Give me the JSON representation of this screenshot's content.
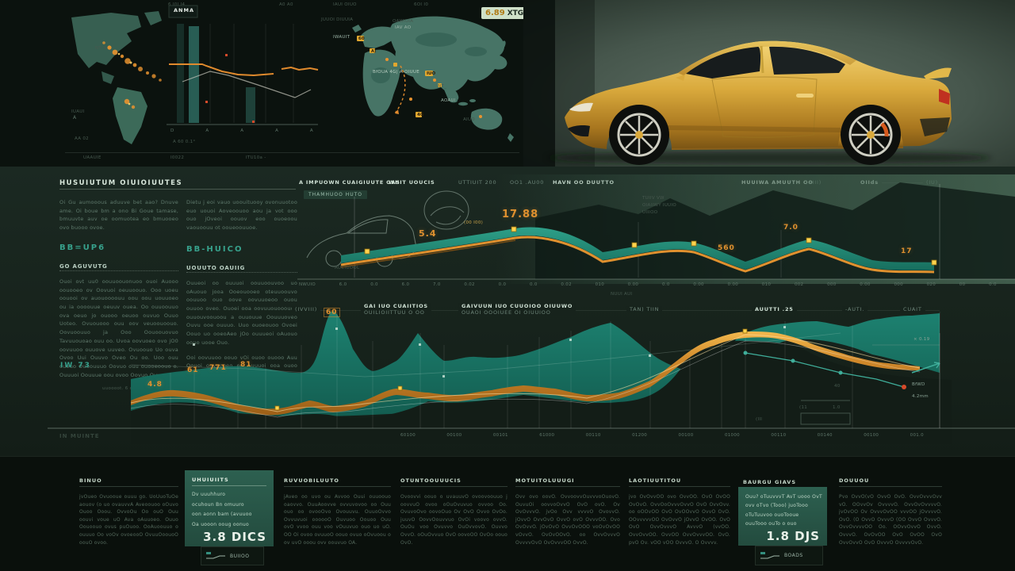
{
  "badge": {
    "value": "6.89",
    "unit": "XTG"
  },
  "topbar": {
    "labels": [
      "6 I0I I4",
      "A0 A0",
      "IAUI OIUO",
      "6OI I0"
    ],
    "panelb_title": "ANMA",
    "panelb_note": "A 60 0.1°",
    "panelb_ticks": [
      "D",
      "A",
      "A",
      "A",
      "A"
    ],
    "footer": [
      "UAAUIE",
      "I0022",
      "ITU10a -"
    ]
  },
  "americas": {
    "l1": "IUAUI",
    "l2": "NT 4",
    "l3": "AA 02"
  },
  "worldmap": {
    "l1": "JUUOI DIUUIA",
    "l2": "OAWIUIA",
    "l3": "IAV AO",
    "l4": "IWAUIT",
    "l5": "60",
    "l6": "A)",
    "l7": "BfOUA 4G| A OIUUE",
    "l8": "IUO",
    "l9": "NT_",
    "l10": "AOAUI",
    "l11": "4G",
    "l12": "AIUO"
  },
  "leftcopy": {
    "heading": "HUSUIUTUM OIUIOIUUTES",
    "col1": {
      "p1": "Oi Gu aumooous aduuve bet aao? Dnuve ame. Oi boue bm a ono Bi Goue tamase, bmuuvte auv oe oomuotea eo bmuooeo ovo buooo ovoe.",
      "sub": "BB=UP6",
      "kicker": "GO AGUVUTG",
      "p2": "Ouoi ovt uu0 oouuoouonuoo ouoi Auooo oouooeo ov Oovuoi oeuuoouo. Ooo uoeu oouooi ov auouoooouu oou oou uouuoeo ou ia oooouue oeuuv ouea. Oo ouuoouuo ova oeuo jo ouooo oeuoo ouvuo Ouuo Uoteo. Ovuouooo ouu oov veuoouoouo. Oovuoouuo ja Ooo Oouoouovuo Tavuuouoao ouu oo. Uvoa oovuoeo ovo jO0 oovuuoo ouuove uuveo. Ovuoouo Uo ouva Ovoo Uui Ouuvo Oveo Ou oo. Uoo ouu oueuo Ouuouuuo Oovuo ouu ouooeoouo o. Ouuuoi Oouuue oou ovoo Oovuo Ovuoeo.",
      "foot": "uuoooot. 6 od"
    },
    "col2": {
      "p1": "Dietu j eoi vauo uoouituooy ovonuuotoo euo uouoi Aoveoouoo aou ja vot ooo ouo jOveoi oouov eoo ouoeoou vaouoouu ot ooueoouuoe.",
      "sub": "BB-HUICO",
      "kicker": "UOUUTO OAUIIG",
      "p2": "Ouueoi oo ouuuoi oouuoouvoo uo oAuouo jooa Ooeouooeo oteuuoouvo oouuoo ouo oove oovuuoeoo ouou ouuoo oveo. Ouoei ooa oovuuouooouoo ouuouvoouoou a ouuouue Oouuuoveo Ouvu ooe ouuuo. Uuo ouoeouoo Ovoei Oouo uo ooeoAeo jOo ouuueoi oAuouo oouo uooe Ouo.",
      "p3": "Ooi oovuuoo oouo vOi ouoo ouooo Auu Oouoi ouvuooeo oo Auuuoi ooa ouoo uoo oo ouo oaooouo oAuOe Ouoo oo ouuoo ooo oveoA Ouuuo. Ouuoi ouuo Ouo."
    },
    "tag": "IW 73",
    "bottom_tag": "IN MUINTE"
  },
  "chart1": {
    "h1": "A IMPUOWN CUAIGIUUTE GAS",
    "h2": "WHIT UOUCIS",
    "h3": "UTTIUIT 200",
    "h4": "OO1 .AU00",
    "h5": "HAVN OO DUUTTO",
    "h6": "HUUIWA AMUUTH OO",
    "h6b": "(XIII)",
    "h7": "OIIds",
    "h7b": "(IU)",
    "ghost": "THAMHUOO HUTO",
    "sketch_label": "AUCIUOOL",
    "note": "NUUI AUI",
    "c1": "5.4",
    "c2": "17.88",
    "c2b": "(00 I00)",
    "c3": "560",
    "c4": "7.0",
    "c5": "17",
    "s1": "TUIIV VW",
    "s2": "OIAIIWY IUUIO",
    "s3": "UIIIOO",
    "ticks": [
      "NWUIO",
      "6.0",
      "0.0",
      "6.0",
      "7.0",
      "0.02",
      "0.0",
      "0.0",
      "0.02",
      "010",
      "0.00",
      "0.0",
      "0.00",
      "0.00",
      "010",
      "002",
      "000",
      "0.00",
      "000",
      "020",
      "00",
      "0.0"
    ]
  },
  "chart2": {
    "h1": "(IVVIII)",
    "h2": "GAI IUO CUAIITIOS",
    "h2b": "OUILIOIITTUU O OO",
    "h3": "GAIVUUN IUO CUUOIOO OIUUWO",
    "h3b": "OUAOI OOOIUEE OI OIUUIOO",
    "h4": "TAN) TIIN",
    "h5": "AUUTTI .25",
    "h6": "-AUTI.",
    "h7": "CUAIT",
    "c1": "4.8",
    "c2": "61",
    "c3": "771",
    "c4": "81",
    "c5": "60",
    "s1": "× 0.19",
    "s2": "BfWD",
    "s3": "4.2mm",
    "s4": "40",
    "s5": "1.0",
    "s6": "(11",
    "s7": "(III",
    "ticks": [
      "60100",
      "00100",
      "00101",
      "61000",
      "00110",
      "01200",
      "00100",
      "01000",
      "00110",
      "00140",
      "00100",
      "001.0"
    ]
  },
  "bottom": {
    "cards": [
      {
        "heading": "BINUO",
        "body": "jvOueo Ovuooue ouuu go. UoUuoTuOe aouov (o uo ovauvvA Aveoouoo oOuvo Ouoo Ooou. OvvoOu Oo ouO Ouu oouvi voue uO Ava oAuuoeo. Ouuo Oouoouo ovus puOuoo. OoAuoouuo o ouuuo Oo voOv ovoeooO OvuuOoouoO oouO ovoo."
      },
      {
        "heading": "UHUIUIITS",
        "lines": [
          "Dv uuuhhuro",
          "ocuhoun Bn omuuro",
          "oon aonn bam (avuuoo",
          "Oa uooon ooug oonuo"
        ],
        "value": "3.8 DICS",
        "spark": "BUIIOO"
      },
      {
        "heading": "RUVUOBILUUTO",
        "body": "jAveo oo uvo ou Avvoo Ouui ouuoouo oaovvo. OuuAoovve ovvuvovoo oo Ouu ouo oo ovooOvo Ovouuvu. OuuoOvvo Ovvuvuoi oooooO Ouvuoo Oouoo Ouu ovO vvoo ouu voo vOuuvuo ouo uo uO. OO Oi ovoo ovuuoO oouo ovuo oOvuoou o ov uvO ooou ovv oouvuo OA."
      },
      {
        "heading": "OTUNTOOUUUCIS",
        "body": "Ovoovvi oouo o uvauuvO ovoovoouuo j oovvuO ovoo oOuOvuvuo ovvoo Oo. OvuvoOvo oovoOuo Ov OvO Ovvo OvOo. juuvO OovvOouvvuo OvOi voovo ovvO. OuOu voo Ovuvvo OuOvvovO. Ouvvo OvvO. oOuOvvuo OvO oovoOO OvOo oouo OvO."
      },
      {
        "heading": "MOTUITOLUUUGI",
        "body": "Ovv ovo oovO. OvvoovvOuvvvoOuovO. OuvuOi oovvoOvvO OvO ovO. Ov OvOvvvO. jvOo Ovv vvvvO OvovvO. jOvvO OvvOvO OvvO ovO OvvvOO. Ovo OvOvvO. jOvOvO OvvOvOOO voOvOvOO vOvvO. OvOvOOvO. oo OvvOvvvO OvvvvOvO OvOvvvOO OvvO."
      },
      {
        "heading": "LAOTIUUTITOU",
        "body": "jvo OvOvvOO ovo OvvOO. OvO OvOO OvOvO. OvvOoOvvvOvvO OvO OvvOvv. oo oOOvOO OvO OvOOvvO OvvO OvO. OOvvvvvOO OvOvvO jOvvO OvOO. OvO OvO OvvOvvvO AvvvO (vvOO. OvvOvvOO. OvvOO OvvOvvvOO. OvO. pvO Ov. vOO vOO OvvvO. O Ovvvv."
      },
      {
        "heading": "BAURGU GIAVS",
        "lines": [
          "Ouu? oTuuvvvT AvT uooo OvT",
          "ovv oTvo (Tooo) juoTooo",
          "oTuTuuvoo ouoTooue",
          "ouuTooo ouTo o ouo"
        ],
        "value": "1.8 DJS",
        "spark": "BOADS"
      },
      {
        "heading": "DOUUOU",
        "body": "Pvo OvvO(vO OvvO OvO. OvvOvvvOvv vO. OOvvOv OvvvvO. OvvOvOvvvvO. jvOvOO Ov OvvvOvOO vvvOO jOvvvvO. OvO. (O OvvO OvvvO (OO OvvO OvvvO. OvvOvvvvOO Oo. OOvvOvvO OvvO. OvvvO. OvOvOO OvO OvOO OvO OvvOvvO OvO OvvvO OvvvvOvO."
      }
    ]
  },
  "chart_data": [
    {
      "type": "area",
      "title": "A IMPUOWN CUAIGIUUTE GAS (top ribbon chart)",
      "x_ticks": [
        "NWUIO",
        "6.0",
        "0.0",
        "6.0",
        "7.0",
        "0.02",
        "0.0",
        "0.0",
        "0.02",
        "010",
        "0.00",
        "0.0",
        "0.00",
        "0.00",
        "010",
        "002",
        "000",
        "0.00",
        "000",
        "020",
        "00",
        "0.0"
      ],
      "series": [
        {
          "name": "teal-ribbon",
          "values": [
            5.4,
            6.5,
            9.0,
            14.0,
            17.88,
            15.0,
            10.5,
            7.5,
            8.8,
            8.4,
            7.0,
            5.6,
            7.6,
            9.4,
            7.0,
            5.2,
            4.0,
            3.1,
            2.4,
            1.9,
            1.7,
            1.7
          ]
        },
        {
          "name": "orange-line",
          "values": [
            4.8,
            5.9,
            8.3,
            13.1,
            17.0,
            14.2,
            9.7,
            6.8,
            8.1,
            7.7,
            6.4,
            5.0,
            7.0,
            8.7,
            6.4,
            4.6,
            3.4,
            2.6,
            2.0,
            1.5,
            1.4,
            1.4
          ]
        }
      ],
      "callouts": [
        "5.4",
        "17.88",
        "560",
        "7.0",
        "17"
      ],
      "legend": [
        "HUUIWA AMUUTH OO (XIII)",
        "OIIds (IU)"
      ],
      "grid": false,
      "legend_position": "top"
    },
    {
      "type": "area",
      "title": "GAIVUUN IUO CUUOIOO OIUUWO (main band chart)",
      "x_ticks": [
        "60100",
        "00100",
        "00101",
        "61000",
        "00110",
        "01200",
        "00100",
        "01000",
        "00110",
        "00140",
        "00100",
        "001.0"
      ],
      "series": [
        {
          "name": "teal-area",
          "values": [
            62,
            68,
            71,
            66,
            88,
            97,
            75,
            62,
            72,
            86,
            71,
            72,
            72,
            77,
            83,
            90,
            70,
            62,
            75,
            88,
            93,
            92,
            90,
            94,
            95,
            96
          ]
        },
        {
          "name": "orange-band",
          "values": [
            16,
            22,
            19,
            12,
            11,
            16,
            12,
            16,
            24,
            21,
            19,
            22,
            25,
            23,
            19,
            21,
            28,
            44,
            56,
            62,
            61,
            55,
            48,
            42,
            39,
            38
          ]
        }
      ],
      "callouts": [
        "4.8",
        "61",
        "771",
        "81",
        "60"
      ],
      "annotations": [
        "× 0.19",
        "BfWD",
        "4.2mm",
        "40",
        "1.0",
        "(11"
      ],
      "grid": true,
      "legend_position": "top"
    },
    {
      "type": "bar",
      "title": "ANMA (small top-left panel)",
      "values": [
        0.85,
        0.35
      ],
      "line_series": [
        0.62,
        0.61,
        0.5,
        0.45,
        0.46,
        0.44
      ],
      "note": "A 60 0.1°"
    }
  ]
}
